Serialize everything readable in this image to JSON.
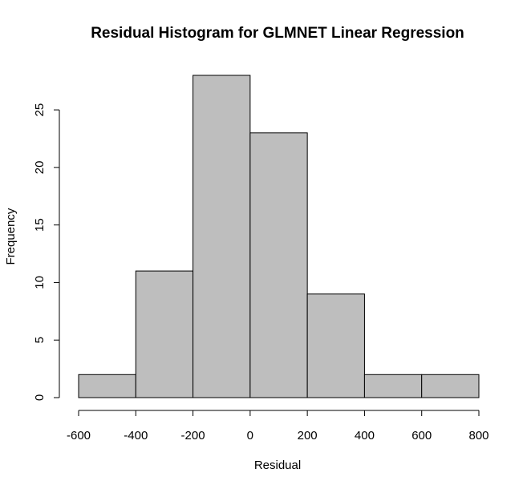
{
  "chart_data": {
    "type": "bar",
    "title": "Residual Histogram for GLMNET Linear Regression",
    "xlabel": "Residual",
    "ylabel": "Frequency",
    "bins": [
      {
        "from": -600,
        "to": -400,
        "count": 2
      },
      {
        "from": -400,
        "to": -200,
        "count": 11
      },
      {
        "from": -200,
        "to": 0,
        "count": 28
      },
      {
        "from": 0,
        "to": 200,
        "count": 23
      },
      {
        "from": 200,
        "to": 400,
        "count": 9
      },
      {
        "from": 400,
        "to": 600,
        "count": 2
      },
      {
        "from": 600,
        "to": 800,
        "count": 2
      }
    ],
    "xlim": [
      -600,
      800
    ],
    "ylim": [
      0,
      28
    ],
    "x_ticks": [
      "-600",
      "-400",
      "-200",
      "0",
      "200",
      "400",
      "600",
      "800"
    ],
    "y_ticks": [
      "0",
      "5",
      "10",
      "15",
      "20",
      "25"
    ],
    "bar_color": "#bebebe",
    "grid": false
  }
}
